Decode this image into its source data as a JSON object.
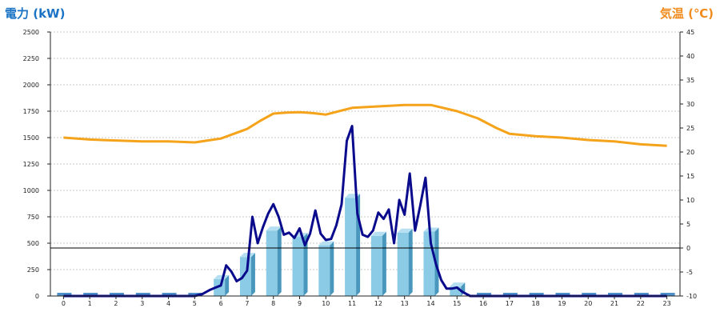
{
  "titles": {
    "left_unit": "電力 (kW)",
    "right_unit": "気温 (℃)"
  },
  "colors": {
    "bar_front": "#8ccbe6",
    "bar_side": "#4a97bd",
    "bar_top": "#b6e0f2",
    "base_bar": "#4f8fc8",
    "power_line": "#0a0a8c",
    "temp_line": "#f5a31a",
    "grid": "#c8c8c8",
    "axis": "#222222",
    "zero_line": "#000000"
  },
  "chart_data": {
    "type": "bar",
    "grid": true,
    "x_axis": {
      "categories": [
        "0",
        "1",
        "2",
        "3",
        "4",
        "5",
        "6",
        "7",
        "8",
        "9",
        "10",
        "11",
        "12",
        "13",
        "14",
        "15",
        "16",
        "17",
        "18",
        "19",
        "20",
        "21",
        "22",
        "23"
      ]
    },
    "y_left": {
      "label": "電力 (kW)",
      "range": [
        0,
        2500
      ],
      "ticks": [
        "0",
        "250",
        "500",
        "750",
        "1000",
        "1250",
        "1500",
        "1750",
        "2000",
        "2250",
        "2500"
      ]
    },
    "y_right": {
      "label": "気温 (℃)",
      "range": [
        -10,
        45
      ],
      "ticks": [
        "-10",
        "-5",
        "0",
        "5",
        "10",
        "15",
        "20",
        "25",
        "30",
        "35",
        "40",
        "45"
      ]
    },
    "series": [
      {
        "type": "bar",
        "axis": "left",
        "values": [
          0,
          0,
          0,
          0,
          0,
          0,
          160,
          370,
          620,
          560,
          480,
          930,
          570,
          600,
          610,
          90,
          0,
          0,
          0,
          0,
          0,
          0,
          0,
          0
        ]
      },
      {
        "type": "line",
        "axis": "right",
        "color": "#f5a31a",
        "x": [
          0,
          1,
          2,
          3,
          4,
          5,
          6,
          7,
          7.5,
          8,
          8.5,
          9,
          9.5,
          10,
          10.5,
          11,
          12,
          13,
          14,
          15,
          15.8,
          16.5,
          17,
          18,
          19,
          20,
          21,
          22,
          23
        ],
        "values": [
          23,
          22.6,
          22.4,
          22.2,
          22.2,
          22,
          22.8,
          24.8,
          26.5,
          28,
          28.2,
          28.3,
          28.1,
          27.8,
          28.5,
          29.2,
          29.5,
          29.8,
          29.8,
          28.5,
          27,
          25,
          23.8,
          23.3,
          23,
          22.5,
          22.2,
          21.6,
          21.3
        ]
      },
      {
        "type": "line",
        "axis": "left",
        "color": "#0a0a8c",
        "x": [
          0,
          1,
          2,
          3,
          4,
          5,
          5.3,
          5.6,
          5.8,
          6,
          6.2,
          6.4,
          6.6,
          6.8,
          7,
          7.2,
          7.4,
          7.6,
          7.8,
          8,
          8.2,
          8.4,
          8.6,
          8.8,
          9,
          9.2,
          9.4,
          9.6,
          9.8,
          10,
          10.2,
          10.4,
          10.6,
          10.8,
          11,
          11.2,
          11.4,
          11.6,
          11.8,
          12,
          12.2,
          12.4,
          12.6,
          12.8,
          13,
          13.2,
          13.4,
          13.6,
          13.8,
          14,
          14.2,
          14.4,
          14.6,
          14.8,
          15,
          15.2,
          15.5,
          16,
          17,
          18,
          19,
          20,
          21,
          22,
          23
        ],
        "values": [
          0,
          0,
          0,
          0,
          0,
          0,
          20,
          60,
          80,
          100,
          290,
          230,
          140,
          170,
          240,
          750,
          500,
          650,
          780,
          870,
          750,
          580,
          600,
          550,
          640,
          480,
          590,
          810,
          590,
          530,
          540,
          670,
          870,
          1470,
          1610,
          780,
          580,
          560,
          620,
          790,
          730,
          820,
          500,
          910,
          770,
          1160,
          620,
          860,
          1120,
          500,
          300,
          150,
          70,
          70,
          80,
          40,
          0,
          0,
          0,
          0,
          0,
          0,
          0,
          0,
          0
        ]
      }
    ]
  }
}
